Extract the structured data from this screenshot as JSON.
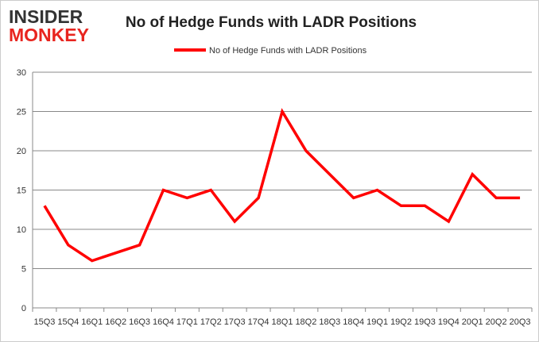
{
  "logo": {
    "line1": "INSIDER",
    "line2": "MONKEY",
    "colors": {
      "line1": "#333333",
      "line2": "#e8251f"
    }
  },
  "chart_data": {
    "type": "line",
    "title": "No of Hedge Funds with LADR Positions",
    "xlabel": "",
    "ylabel": "",
    "categories": [
      "15Q3",
      "15Q4",
      "16Q1",
      "16Q2",
      "16Q3",
      "16Q4",
      "17Q1",
      "17Q2",
      "17Q3",
      "17Q4",
      "18Q1",
      "18Q2",
      "18Q3",
      "18Q4",
      "19Q1",
      "19Q2",
      "19Q3",
      "19Q4",
      "20Q1",
      "20Q2",
      "20Q3"
    ],
    "series": [
      {
        "name": "No of Hedge Funds with LADR Positions",
        "color": "#ff0000",
        "values": [
          13,
          8,
          6,
          7,
          8,
          15,
          14,
          15,
          11,
          14,
          25,
          20,
          17,
          14,
          15,
          13,
          13,
          11,
          17,
          14,
          14
        ]
      }
    ],
    "ylim": [
      0,
      30
    ],
    "yticks": [
      0,
      5,
      10,
      15,
      20,
      25,
      30
    ],
    "grid": true,
    "legend": "top"
  }
}
